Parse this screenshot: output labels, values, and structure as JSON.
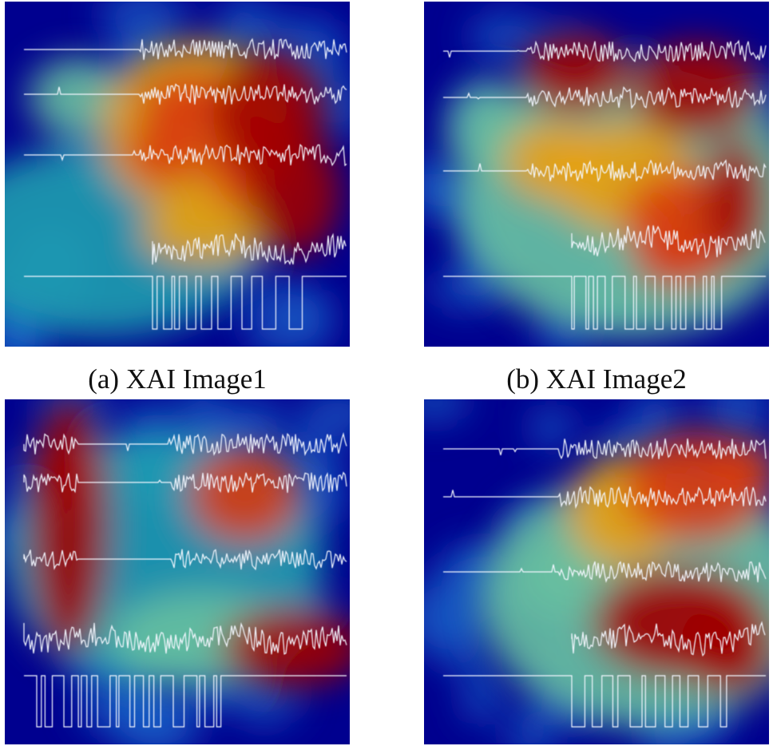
{
  "figure": {
    "panels": [
      {
        "id": "p1",
        "caption": "(a) XAI Image1"
      },
      {
        "id": "p2",
        "caption": "(b) XAI Image2"
      },
      {
        "id": "p3",
        "caption": ""
      },
      {
        "id": "p4",
        "caption": ""
      }
    ]
  },
  "colors": {
    "heatmap_low": "#00008f",
    "heatmap_mid": "#1fa0b0",
    "heatmap_warm": "#e8a010",
    "heatmap_high": "#a00000",
    "signal": "#f4f8ff"
  }
}
